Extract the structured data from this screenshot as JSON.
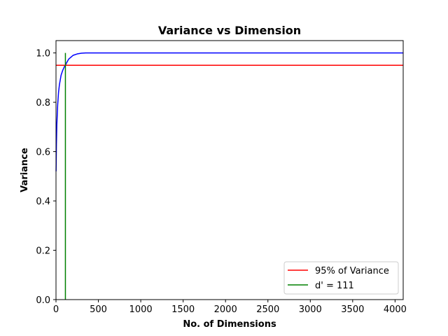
{
  "chart_data": {
    "type": "line",
    "title": "Variance vs Dimension",
    "xlabel": "No. of Dimensions",
    "ylabel": "Variance",
    "xlim": [
      0,
      4096
    ],
    "ylim": [
      0,
      1.05
    ],
    "xticks": [
      0,
      500,
      1000,
      1500,
      2000,
      2500,
      3000,
      3500,
      4000
    ],
    "xtick_labels": [
      "0",
      "500",
      "1000",
      "1500",
      "2000",
      "2500",
      "3000",
      "3500",
      "4000"
    ],
    "yticks": [
      0.0,
      0.2,
      0.4,
      0.6,
      0.8,
      1.0
    ],
    "ytick_labels": [
      "0.0",
      "0.2",
      "0.4",
      "0.6",
      "0.8",
      "1.0"
    ],
    "grid": false,
    "legend_position": "lower-right",
    "series": [
      {
        "color": "#0000ff",
        "x": [
          1,
          5,
          10,
          20,
          30,
          40,
          50,
          60,
          80,
          100,
          111,
          125,
          150,
          200,
          250,
          300,
          350,
          400,
          1000,
          2000,
          3000,
          4096
        ],
        "y": [
          0.52,
          0.63,
          0.71,
          0.79,
          0.84,
          0.87,
          0.89,
          0.91,
          0.93,
          0.945,
          0.95,
          0.96,
          0.975,
          0.99,
          0.996,
          0.999,
          1.0,
          1.0,
          1.0,
          1.0,
          1.0,
          1.0
        ]
      }
    ],
    "reference_lines": [
      {
        "name": "95% of Variance",
        "orientation": "horizontal",
        "value": 0.95,
        "color": "#ff0000"
      },
      {
        "name": "d' = 111",
        "orientation": "vertical",
        "value": 111,
        "y_range": [
          0,
          1.0
        ],
        "color": "#008000"
      }
    ]
  }
}
